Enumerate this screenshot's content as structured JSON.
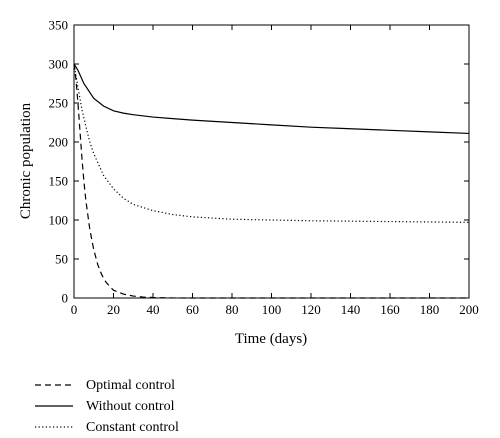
{
  "chart_data": {
    "type": "line",
    "title": "",
    "xlabel": "Time (days)",
    "ylabel": "Chronic population",
    "xlim": [
      0,
      200
    ],
    "ylim": [
      0,
      350
    ],
    "xticks": [
      0,
      20,
      40,
      60,
      80,
      100,
      120,
      140,
      160,
      180,
      200
    ],
    "yticks": [
      0,
      50,
      100,
      150,
      200,
      250,
      300,
      350
    ],
    "grid": false,
    "legend_position": "below",
    "series": [
      {
        "name": "Optimal control",
        "style": "dashed",
        "x": [
          0,
          1,
          2,
          3,
          4,
          5,
          6,
          8,
          10,
          12,
          14,
          16,
          18,
          20,
          25,
          30,
          35,
          40,
          45,
          50,
          60,
          80,
          100,
          150,
          200
        ],
        "y": [
          300,
          280,
          250,
          215,
          180,
          150,
          125,
          88,
          62,
          43,
          30,
          21,
          15,
          10,
          5,
          2.5,
          1.2,
          0.6,
          0.3,
          0.1,
          0,
          0,
          0,
          0,
          0
        ]
      },
      {
        "name": "Without control",
        "style": "solid",
        "x": [
          0,
          2,
          5,
          10,
          15,
          20,
          25,
          30,
          40,
          50,
          60,
          80,
          100,
          120,
          140,
          160,
          180,
          200
        ],
        "y": [
          300,
          292,
          275,
          256,
          246,
          240,
          237,
          235,
          232,
          230,
          228,
          225,
          222,
          219,
          217,
          215,
          213,
          211
        ]
      },
      {
        "name": "Constant control",
        "style": "dotted",
        "x": [
          0,
          2,
          4,
          6,
          8,
          10,
          15,
          20,
          25,
          30,
          40,
          50,
          60,
          80,
          100,
          120,
          140,
          160,
          180,
          200
        ],
        "y": [
          300,
          270,
          242,
          220,
          200,
          185,
          157,
          140,
          128,
          120,
          112,
          107,
          104,
          101,
          100,
          99,
          98.5,
          98,
          97.5,
          97
        ]
      }
    ]
  }
}
